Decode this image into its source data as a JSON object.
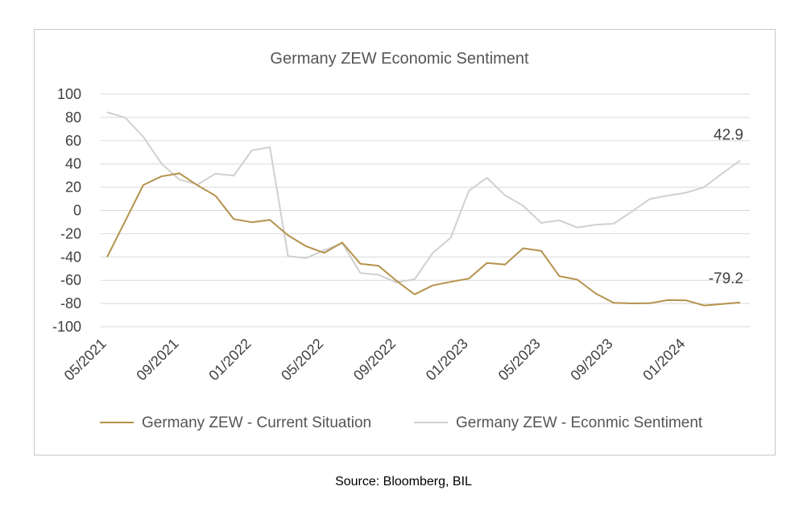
{
  "source": "Source: Bloomberg, BIL",
  "chart_data": {
    "type": "line",
    "title": "Germany ZEW Economic Sentiment",
    "xlabel": "",
    "ylabel": "",
    "ylim": [
      -100,
      100
    ],
    "yticks": [
      100,
      80,
      60,
      40,
      20,
      0,
      -20,
      -40,
      -60,
      -80,
      -100
    ],
    "xticks": [
      "05/2021",
      "09/2021",
      "01/2022",
      "05/2022",
      "09/2022",
      "01/2023",
      "05/2023",
      "09/2023",
      "01/2024"
    ],
    "x": [
      "05/2021",
      "06/2021",
      "07/2021",
      "08/2021",
      "09/2021",
      "10/2021",
      "11/2021",
      "12/2021",
      "01/2022",
      "02/2022",
      "03/2022",
      "04/2022",
      "05/2022",
      "06/2022",
      "07/2022",
      "08/2022",
      "09/2022",
      "10/2022",
      "11/2022",
      "12/2022",
      "01/2023",
      "02/2023",
      "03/2023",
      "04/2023",
      "05/2023",
      "06/2023",
      "07/2023",
      "08/2023",
      "09/2023",
      "10/2023",
      "11/2023",
      "12/2023",
      "01/2024",
      "02/2024",
      "03/2024",
      "04/2024"
    ],
    "grid": true,
    "legend_position": "bottom",
    "series": [
      {
        "name": "Germany ZEW - Current Situation",
        "color": "#b5924c",
        "end_label": "-79.2",
        "values": [
          -40.1,
          -9.1,
          21.9,
          29.3,
          31.9,
          21.6,
          12.5,
          -7.4,
          -10.2,
          -8.1,
          -21.4,
          -30.8,
          -36.5,
          -27.6,
          -45.8,
          -47.6,
          -60.5,
          -72.2,
          -64.5,
          -61.4,
          -58.6,
          -45.1,
          -46.5,
          -32.5,
          -34.8,
          -56.5,
          -59.5,
          -71.3,
          -79.4,
          -79.9,
          -79.8,
          -77.1,
          -77.3,
          -81.7,
          -80.5,
          -79.2
        ]
      },
      {
        "name": "Germany ZEW - Econmic Sentiment",
        "color": "#d0d0d0",
        "end_label": "42.9",
        "values": [
          84.4,
          79.8,
          63.3,
          40.4,
          26.5,
          22.3,
          31.7,
          29.9,
          51.7,
          54.3,
          -39.3,
          -41.0,
          -34.3,
          -28.0,
          -53.8,
          -55.3,
          -61.9,
          -59.2,
          -36.7,
          -23.3,
          16.9,
          28.1,
          13.0,
          4.1,
          -10.7,
          -8.5,
          -14.7,
          -12.3,
          -11.4,
          -1.1,
          9.8,
          12.8,
          15.2,
          19.9,
          31.7,
          42.9
        ]
      }
    ]
  }
}
